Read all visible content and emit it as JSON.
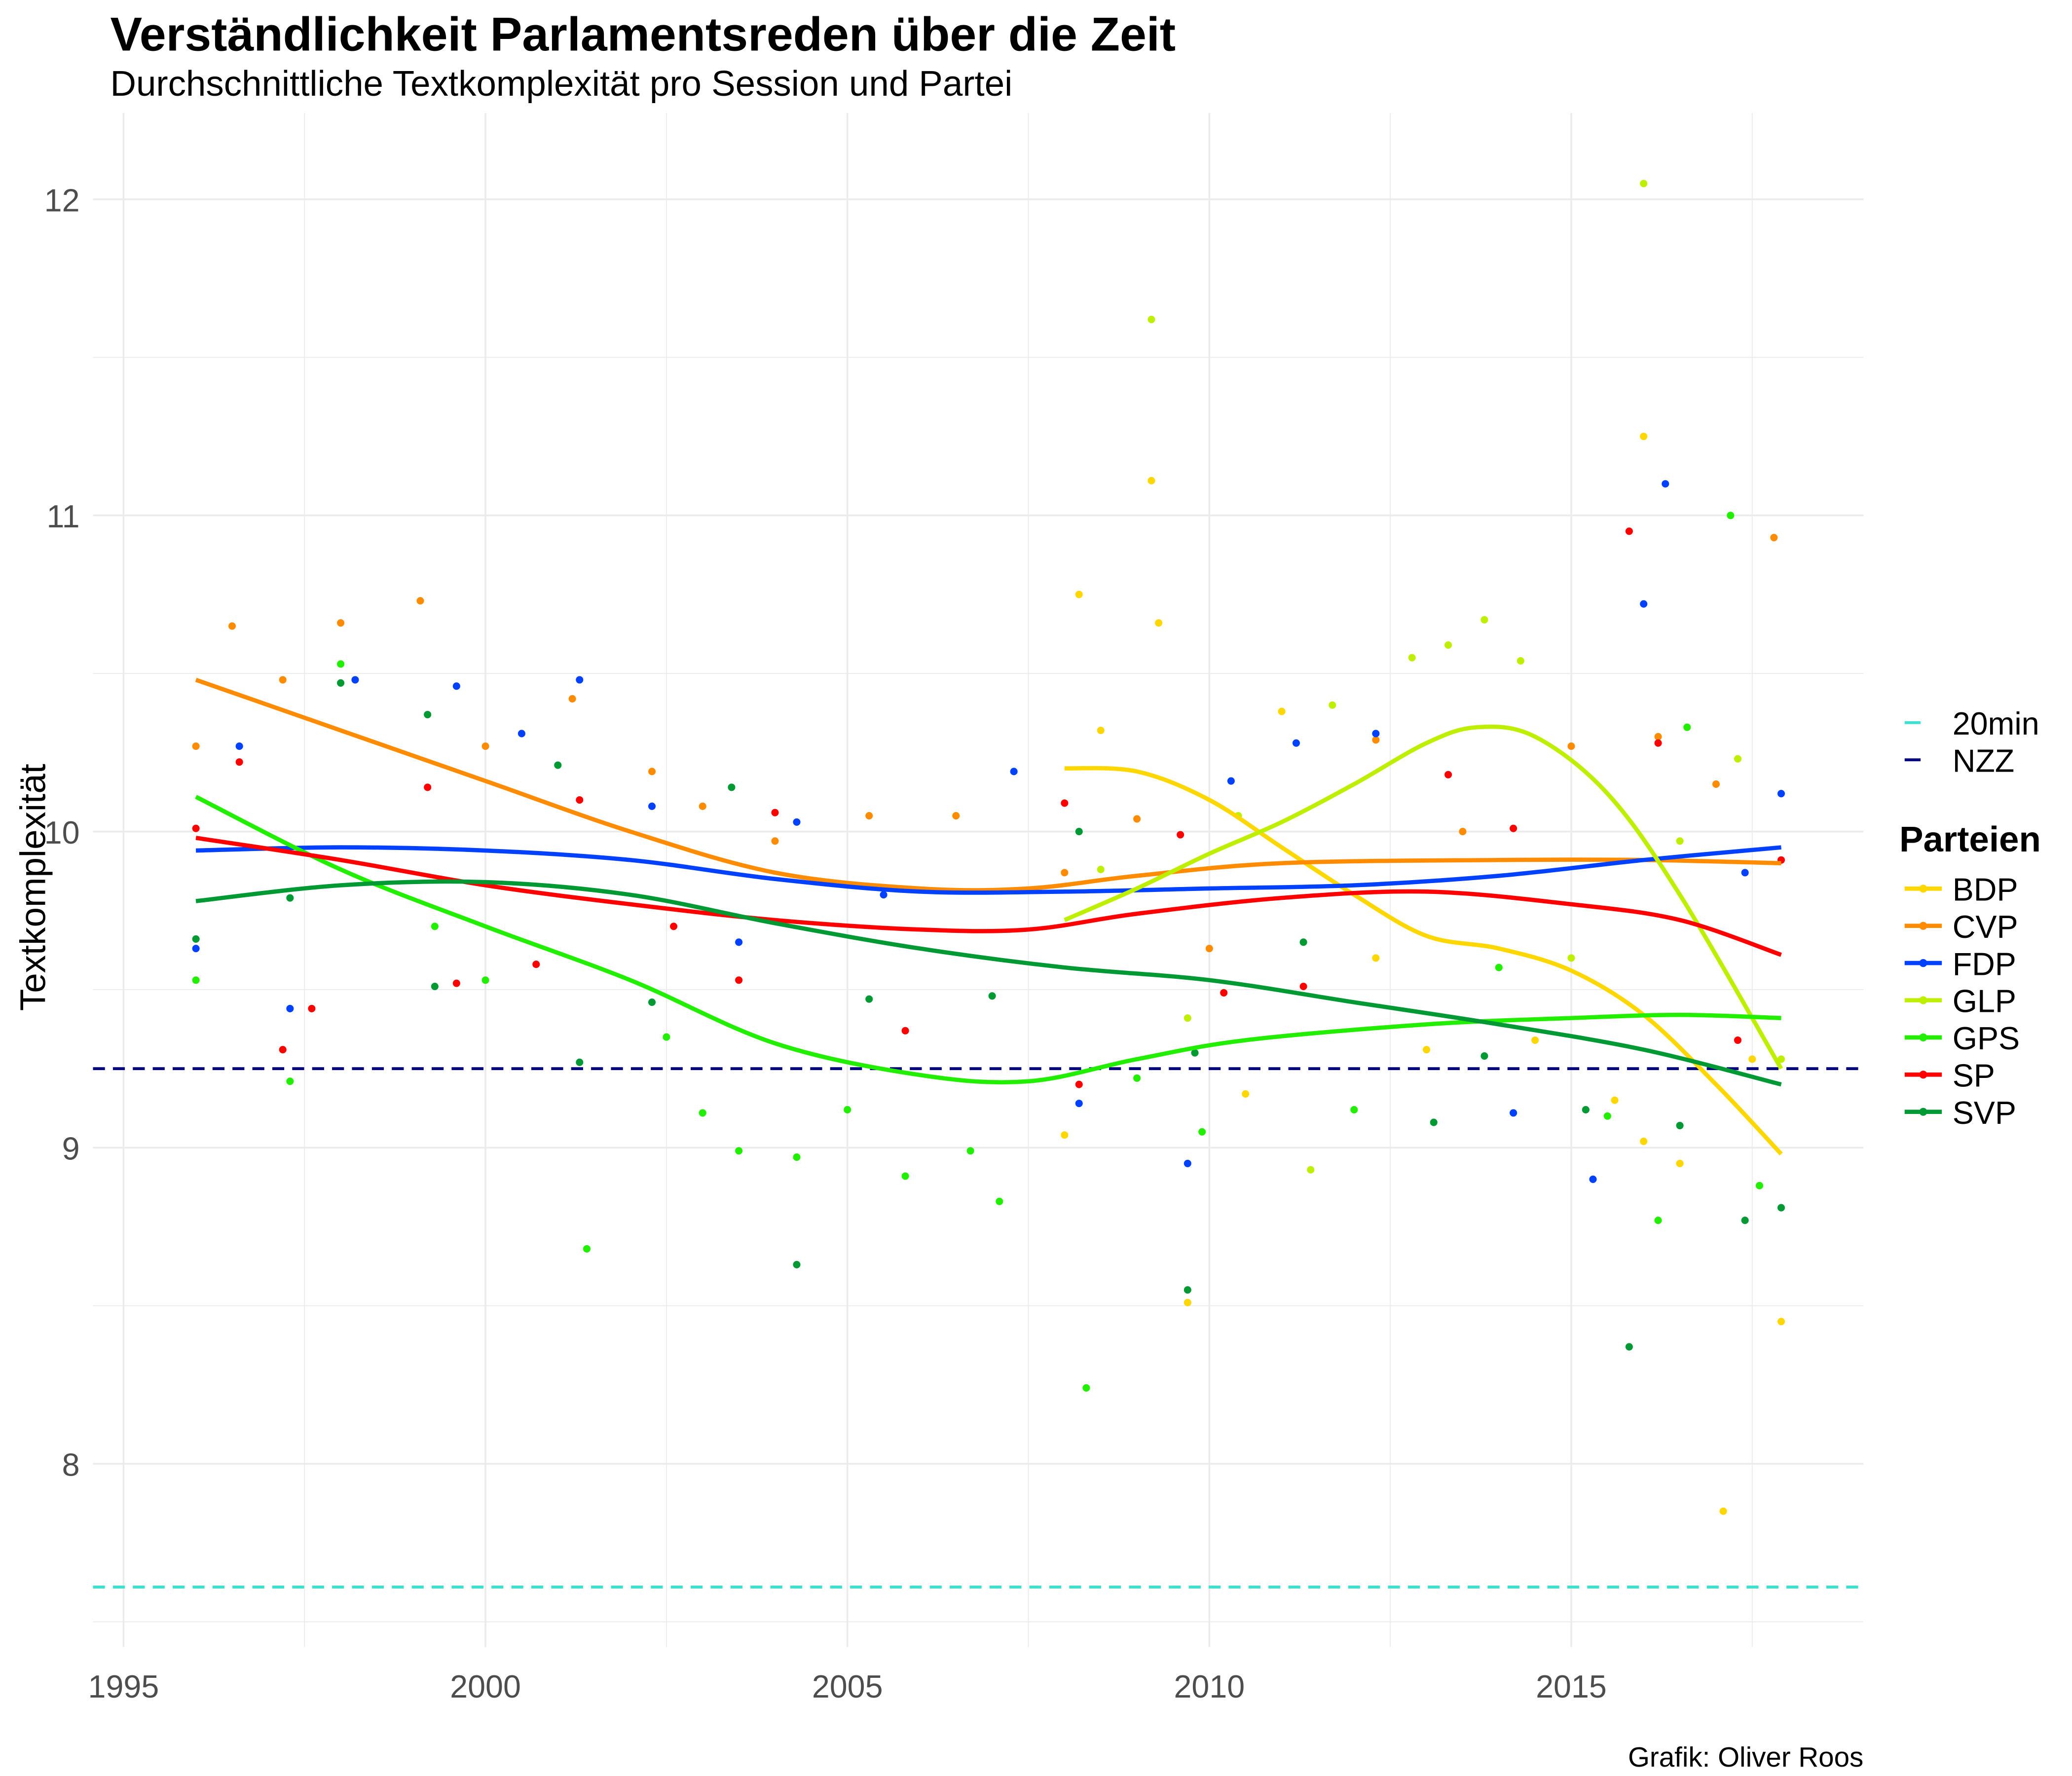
{
  "chart_data": {
    "type": "scatter",
    "title": "Verständlichkeit Parlamentsreden über die Zeit",
    "subtitle": "Durchschnittliche Textkomplexität pro Session und Partei",
    "xlabel": "",
    "ylabel": "Textkomplexität",
    "caption": "Grafik: Oliver Roos",
    "xlim": [
      1994,
      2019
    ],
    "ylim": [
      7.42,
      12.27
    ],
    "x_ticks": [
      "1995",
      "2000",
      "2005",
      "2010",
      "2015"
    ],
    "y_ticks": [
      "8",
      "9",
      "10",
      "11",
      "12"
    ],
    "grid": true,
    "legend_position": "right",
    "reference_lines": [
      {
        "name": "20min",
        "value": 7.61,
        "color": "#40E0D0"
      },
      {
        "name": "NZZ",
        "value": 9.25,
        "color": "#000080"
      }
    ],
    "legend_title": "Parteien",
    "series": [
      {
        "name": "BDP",
        "color": "#FFD700",
        "smooth": [
          [
            2008,
            10.2
          ],
          [
            2009,
            10.19
          ],
          [
            2010,
            10.1
          ],
          [
            2011,
            9.95
          ],
          [
            2012,
            9.8
          ],
          [
            2013,
            9.67
          ],
          [
            2014,
            9.63
          ],
          [
            2015,
            9.56
          ],
          [
            2016,
            9.42
          ],
          [
            2017,
            9.2
          ],
          [
            2017.9,
            8.98
          ]
        ],
        "points": [
          [
            2008,
            9.04
          ],
          [
            2008.2,
            10.75
          ],
          [
            2008.5,
            10.32
          ],
          [
            2009.2,
            11.11
          ],
          [
            2009.3,
            10.66
          ],
          [
            2009.7,
            8.51
          ],
          [
            2010.5,
            9.17
          ],
          [
            2011,
            10.38
          ],
          [
            2012.3,
            9.6
          ],
          [
            2013,
            9.31
          ],
          [
            2014.5,
            9.34
          ],
          [
            2015.6,
            9.15
          ],
          [
            2016,
            11.25
          ],
          [
            2016,
            9.02
          ],
          [
            2016.5,
            8.95
          ],
          [
            2017.1,
            7.85
          ],
          [
            2017.5,
            9.28
          ],
          [
            2017.9,
            8.45
          ]
        ]
      },
      {
        "name": "CVP",
        "color": "#FF8C00",
        "smooth": [
          [
            1996,
            10.48
          ],
          [
            1998,
            10.32
          ],
          [
            2000,
            10.16
          ],
          [
            2002,
            10.0
          ],
          [
            2004,
            9.87
          ],
          [
            2006,
            9.82
          ],
          [
            2007.5,
            9.82
          ],
          [
            2009,
            9.86
          ],
          [
            2011,
            9.9
          ],
          [
            2014,
            9.91
          ],
          [
            2016,
            9.91
          ],
          [
            2017.9,
            9.9
          ]
        ],
        "points": [
          [
            1996,
            10.27
          ],
          [
            1996.5,
            10.65
          ],
          [
            1997.2,
            10.48
          ],
          [
            1998,
            10.66
          ],
          [
            1999.1,
            10.73
          ],
          [
            2000,
            10.27
          ],
          [
            2001.2,
            10.42
          ],
          [
            2002.3,
            10.19
          ],
          [
            2003,
            10.08
          ],
          [
            2004,
            9.97
          ],
          [
            2005.3,
            10.05
          ],
          [
            2006.5,
            10.05
          ],
          [
            2008,
            9.87
          ],
          [
            2009,
            10.04
          ],
          [
            2010,
            9.63
          ],
          [
            2012.3,
            10.29
          ],
          [
            2013.5,
            10.0
          ],
          [
            2015,
            10.27
          ],
          [
            2016.2,
            10.3
          ],
          [
            2017,
            10.15
          ],
          [
            2017.8,
            10.93
          ]
        ]
      },
      {
        "name": "FDP",
        "color": "#0040FF",
        "smooth": [
          [
            1996,
            9.94
          ],
          [
            1998,
            9.95
          ],
          [
            2000,
            9.94
          ],
          [
            2002,
            9.91
          ],
          [
            2004,
            9.85
          ],
          [
            2006,
            9.81
          ],
          [
            2008,
            9.81
          ],
          [
            2010,
            9.82
          ],
          [
            2012,
            9.83
          ],
          [
            2014,
            9.86
          ],
          [
            2016,
            9.91
          ],
          [
            2017.9,
            9.95
          ]
        ],
        "points": [
          [
            1996,
            9.63
          ],
          [
            1996.6,
            10.27
          ],
          [
            1997.3,
            9.44
          ],
          [
            1998.2,
            10.48
          ],
          [
            1999.6,
            10.46
          ],
          [
            2000.5,
            10.31
          ],
          [
            2001.3,
            10.48
          ],
          [
            2002.3,
            10.08
          ],
          [
            2003.5,
            9.65
          ],
          [
            2004.3,
            10.03
          ],
          [
            2005.5,
            9.8
          ],
          [
            2007.3,
            10.19
          ],
          [
            2008.2,
            9.14
          ],
          [
            2009.7,
            8.95
          ],
          [
            2010.3,
            10.16
          ],
          [
            2011.2,
            10.28
          ],
          [
            2012.3,
            10.31
          ],
          [
            2014.2,
            9.11
          ],
          [
            2015.3,
            8.9
          ],
          [
            2016,
            10.72
          ],
          [
            2016.3,
            11.1
          ],
          [
            2017.4,
            9.87
          ],
          [
            2017.9,
            10.12
          ]
        ]
      },
      {
        "name": "GLP",
        "color": "#BFEF00",
        "smooth": [
          [
            2008,
            9.72
          ],
          [
            2009,
            9.82
          ],
          [
            2010,
            9.93
          ],
          [
            2011,
            10.03
          ],
          [
            2012,
            10.15
          ],
          [
            2013,
            10.28
          ],
          [
            2013.7,
            10.33
          ],
          [
            2014.5,
            10.3
          ],
          [
            2015.5,
            10.12
          ],
          [
            2016.5,
            9.8
          ],
          [
            2017.9,
            9.25
          ]
        ],
        "points": [
          [
            2008.5,
            9.88
          ],
          [
            2009.2,
            11.62
          ],
          [
            2009.7,
            9.41
          ],
          [
            2010.4,
            10.05
          ],
          [
            2011.4,
            8.93
          ],
          [
            2011.7,
            10.4
          ],
          [
            2012.8,
            10.55
          ],
          [
            2013.3,
            10.59
          ],
          [
            2013.8,
            10.67
          ],
          [
            2014.3,
            10.54
          ],
          [
            2015,
            9.6
          ],
          [
            2016,
            12.05
          ],
          [
            2016.5,
            9.97
          ],
          [
            2017.3,
            10.23
          ],
          [
            2017.9,
            9.28
          ]
        ]
      },
      {
        "name": "GPS",
        "color": "#22EE00",
        "smooth": [
          [
            1996,
            10.11
          ],
          [
            1998,
            9.88
          ],
          [
            2000,
            9.7
          ],
          [
            2002,
            9.53
          ],
          [
            2004,
            9.33
          ],
          [
            2006,
            9.23
          ],
          [
            2007.5,
            9.21
          ],
          [
            2009,
            9.28
          ],
          [
            2010.5,
            9.34
          ],
          [
            2013,
            9.39
          ],
          [
            2015,
            9.41
          ],
          [
            2016.5,
            9.42
          ],
          [
            2017.9,
            9.41
          ]
        ],
        "points": [
          [
            1996,
            9.53
          ],
          [
            1997.3,
            9.21
          ],
          [
            1998,
            10.53
          ],
          [
            1999.3,
            9.7
          ],
          [
            2000,
            9.53
          ],
          [
            2001.4,
            8.68
          ],
          [
            2002.5,
            9.35
          ],
          [
            2003,
            9.11
          ],
          [
            2003.5,
            8.99
          ],
          [
            2004.3,
            8.97
          ],
          [
            2005,
            9.12
          ],
          [
            2005.8,
            8.91
          ],
          [
            2006.7,
            8.99
          ],
          [
            2007.1,
            8.83
          ],
          [
            2008.3,
            8.24
          ],
          [
            2009,
            9.22
          ],
          [
            2009.9,
            9.05
          ],
          [
            2012,
            9.12
          ],
          [
            2014,
            9.57
          ],
          [
            2015.5,
            9.1
          ],
          [
            2016.2,
            8.77
          ],
          [
            2016.6,
            10.33
          ],
          [
            2017.2,
            11.0
          ],
          [
            2017.6,
            8.88
          ]
        ]
      },
      {
        "name": "SP",
        "color": "#FF0000",
        "smooth": [
          [
            1996,
            9.98
          ],
          [
            1998,
            9.91
          ],
          [
            2000,
            9.83
          ],
          [
            2002,
            9.77
          ],
          [
            2004,
            9.72
          ],
          [
            2006,
            9.69
          ],
          [
            2007.5,
            9.69
          ],
          [
            2009,
            9.74
          ],
          [
            2011,
            9.79
          ],
          [
            2013,
            9.81
          ],
          [
            2015,
            9.77
          ],
          [
            2016.5,
            9.72
          ],
          [
            2017.9,
            9.61
          ]
        ],
        "points": [
          [
            1996,
            10.01
          ],
          [
            1996.6,
            10.22
          ],
          [
            1997.2,
            9.31
          ],
          [
            1997.6,
            9.44
          ],
          [
            1999.2,
            10.14
          ],
          [
            1999.6,
            9.52
          ],
          [
            2000.7,
            9.58
          ],
          [
            2001.3,
            10.1
          ],
          [
            2002.6,
            9.7
          ],
          [
            2003.5,
            9.53
          ],
          [
            2004,
            10.06
          ],
          [
            2005.8,
            9.37
          ],
          [
            2008,
            10.09
          ],
          [
            2008.2,
            9.2
          ],
          [
            2009.6,
            9.99
          ],
          [
            2010.2,
            9.49
          ],
          [
            2011.3,
            9.51
          ],
          [
            2013.3,
            10.18
          ],
          [
            2014.2,
            10.01
          ],
          [
            2015.8,
            10.95
          ],
          [
            2016.2,
            10.28
          ],
          [
            2017.3,
            9.34
          ],
          [
            2017.9,
            9.91
          ]
        ]
      },
      {
        "name": "SVP",
        "color": "#009933",
        "smooth": [
          [
            1996,
            9.78
          ],
          [
            1998,
            9.83
          ],
          [
            2000,
            9.84
          ],
          [
            2002,
            9.8
          ],
          [
            2004,
            9.71
          ],
          [
            2006,
            9.63
          ],
          [
            2008,
            9.57
          ],
          [
            2010,
            9.53
          ],
          [
            2012,
            9.46
          ],
          [
            2014,
            9.39
          ],
          [
            2016,
            9.31
          ],
          [
            2017.9,
            9.2
          ]
        ],
        "points": [
          [
            1996,
            9.66
          ],
          [
            1997.3,
            9.79
          ],
          [
            1998,
            10.47
          ],
          [
            1999.2,
            10.37
          ],
          [
            1999.3,
            9.51
          ],
          [
            2001,
            10.21
          ],
          [
            2001.3,
            9.27
          ],
          [
            2002.3,
            9.46
          ],
          [
            2003.4,
            10.14
          ],
          [
            2004.3,
            8.63
          ],
          [
            2005.3,
            9.47
          ],
          [
            2007,
            9.48
          ],
          [
            2008.2,
            10.0
          ],
          [
            2009.7,
            8.55
          ],
          [
            2009.8,
            9.3
          ],
          [
            2011.3,
            9.65
          ],
          [
            2013.1,
            9.08
          ],
          [
            2013.8,
            9.29
          ],
          [
            2015.2,
            9.12
          ],
          [
            2015.8,
            8.37
          ],
          [
            2016.5,
            9.07
          ],
          [
            2017.4,
            8.77
          ],
          [
            2017.9,
            8.81
          ]
        ]
      }
    ]
  }
}
